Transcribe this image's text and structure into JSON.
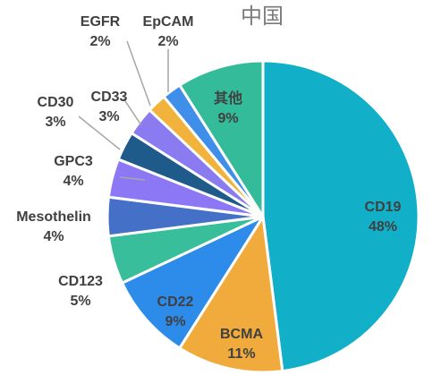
{
  "chart_data": {
    "type": "pie",
    "title": "中国",
    "legend": "none",
    "slices": [
      {
        "label": "CD19",
        "value": 48,
        "value_label": "48%",
        "color": "#12AFC8",
        "label_color": "#404040"
      },
      {
        "label": "BCMA",
        "value": 11,
        "value_label": "11%",
        "color": "#F0AB3C",
        "label_color": "#404040"
      },
      {
        "label": "CD22",
        "value": 9,
        "value_label": "9%",
        "color": "#2D8CEA",
        "label_color": "#404040"
      },
      {
        "label": "CD123",
        "value": 5,
        "value_label": "5%",
        "color": "#38BE9A",
        "label_color": "#404040"
      },
      {
        "label": "Mesothelin",
        "value": 4,
        "value_label": "4%",
        "color": "#4470C8",
        "label_color": "#404040"
      },
      {
        "label": "GPC3",
        "value": 4,
        "value_label": "4%",
        "color": "#8C78F5",
        "label_color": "#404040"
      },
      {
        "label": "CD30",
        "value": 3,
        "value_label": "3%",
        "color": "#1E5A8A",
        "label_color": "#404040"
      },
      {
        "label": "CD33",
        "value": 3,
        "value_label": "3%",
        "color": "#8A7CF0",
        "label_color": "#404040"
      },
      {
        "label": "EGFR",
        "value": 2,
        "value_label": "2%",
        "color": "#F2B33D",
        "label_color": "#404040"
      },
      {
        "label": "EpCAM",
        "value": 2,
        "value_label": "2%",
        "color": "#3E8EEA",
        "label_color": "#404040"
      },
      {
        "label": "其他",
        "value": 9,
        "value_label": "9%",
        "color": "#34BC9A",
        "label_color": "#404040"
      }
    ]
  }
}
